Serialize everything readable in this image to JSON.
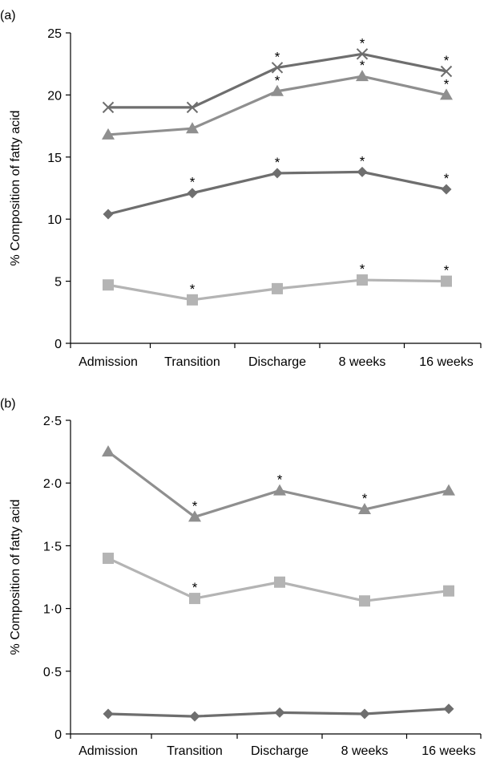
{
  "chart_data": [
    {
      "panel_label": "(a)",
      "type": "line",
      "categories": [
        "Admission",
        "Transition",
        "Discharge",
        "8 weeks",
        "16 weeks"
      ],
      "ylabel": "% Composition of fatty acid",
      "ylim": [
        0,
        25
      ],
      "yticks": [
        0,
        5,
        10,
        15,
        20,
        25
      ],
      "ytick_labels": [
        "0",
        "5",
        "10",
        "15",
        "20",
        "25"
      ],
      "grid": false,
      "legend": "none",
      "series": [
        {
          "marker": "cross",
          "color": "#6e6e6e",
          "values": [
            19.0,
            19.0,
            22.2,
            23.3,
            21.9
          ],
          "significant": [
            false,
            false,
            true,
            true,
            true
          ]
        },
        {
          "marker": "triangle",
          "color": "#8f8f8f",
          "values": [
            16.8,
            17.3,
            20.3,
            21.5,
            20.0
          ],
          "significant": [
            false,
            false,
            true,
            true,
            true
          ]
        },
        {
          "marker": "diamond",
          "color": "#6e6e6e",
          "values": [
            10.4,
            12.1,
            13.7,
            13.8,
            12.4
          ],
          "significant": [
            false,
            true,
            true,
            true,
            true
          ]
        },
        {
          "marker": "square",
          "color": "#b4b4b4",
          "values": [
            4.7,
            3.5,
            4.4,
            5.1,
            5.0
          ],
          "significant": [
            false,
            true,
            false,
            true,
            true
          ]
        }
      ]
    },
    {
      "panel_label": "(b)",
      "type": "line",
      "categories": [
        "Admission",
        "Transition",
        "Discharge",
        "8 weeks",
        "16 weeks"
      ],
      "ylabel": "% Composition of fatty acid",
      "ylim": [
        0,
        2.5
      ],
      "yticks": [
        0,
        0.5,
        1.0,
        1.5,
        2.0,
        2.5
      ],
      "ytick_labels": [
        "0",
        "0·5",
        "1·0",
        "1·5",
        "2·0",
        "2·5"
      ],
      "grid": false,
      "legend": "none",
      "series": [
        {
          "marker": "triangle",
          "color": "#8f8f8f",
          "values": [
            2.25,
            1.73,
            1.94,
            1.79,
            1.94
          ],
          "significant": [
            false,
            true,
            true,
            true,
            false
          ]
        },
        {
          "marker": "square",
          "color": "#b4b4b4",
          "values": [
            1.4,
            1.08,
            1.21,
            1.06,
            1.14
          ],
          "significant": [
            false,
            true,
            false,
            false,
            false
          ]
        },
        {
          "marker": "diamond",
          "color": "#6e6e6e",
          "values": [
            0.16,
            0.14,
            0.17,
            0.16,
            0.2
          ],
          "significant": [
            false,
            false,
            false,
            false,
            false
          ]
        }
      ]
    }
  ]
}
